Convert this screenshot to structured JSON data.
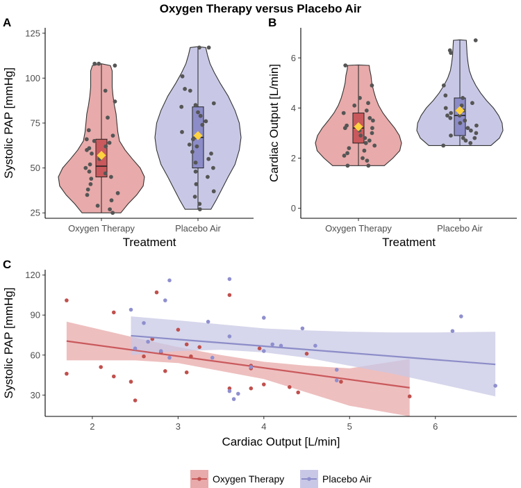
{
  "figure": {
    "title": "Oxygen Therapy versus Placebo Air",
    "colors": {
      "oxygen_fill": "#e8aaaa",
      "oxygen_box": "#c9595c",
      "oxygen_point": "#c0504d",
      "placebo_fill": "#c8c8e6",
      "placebo_box": "#8c8cc8",
      "placebo_point": "#8f8fcf",
      "jitter_point": "#555555",
      "mean_marker": "#ffd23f"
    },
    "legend": {
      "oxygen": "Oxygen Therapy",
      "placebo": "Placebo Air"
    }
  },
  "chart_data": [
    {
      "panel": "A",
      "type": "violin",
      "xlabel": "Treatment",
      "ylabel": "Systolic PAP [mmHg]",
      "ylim": [
        22,
        128
      ],
      "yticks": [
        25,
        50,
        75,
        100,
        125
      ],
      "groups": [
        {
          "name": "Oxygen Therapy",
          "min": 25,
          "q1": 45,
          "median": 51,
          "q3": 66,
          "max": 108,
          "mean": 57,
          "density": [
            [
              25,
              0.45
            ],
            [
              30,
              0.62
            ],
            [
              35,
              0.82
            ],
            [
              40,
              0.97
            ],
            [
              45,
              1.0
            ],
            [
              50,
              0.9
            ],
            [
              55,
              0.72
            ],
            [
              60,
              0.55
            ],
            [
              65,
              0.42
            ],
            [
              70,
              0.38
            ],
            [
              75,
              0.36
            ],
            [
              80,
              0.34
            ],
            [
              85,
              0.3
            ],
            [
              90,
              0.27
            ],
            [
              95,
              0.25
            ],
            [
              100,
              0.25
            ],
            [
              104,
              0.25
            ],
            [
              107,
              0.21
            ],
            [
              108,
              0.0
            ]
          ],
          "points": [
            108,
            108,
            107,
            93,
            87,
            78,
            71,
            68,
            66,
            65,
            64,
            62,
            61,
            60,
            58,
            56,
            55,
            52,
            50,
            48,
            47,
            45,
            44,
            41,
            38,
            36,
            35,
            32,
            29,
            27,
            25
          ]
        },
        {
          "name": "Placebo Air",
          "min": 27,
          "q1": 50,
          "median": 67,
          "q3": 84,
          "max": 117,
          "mean": 68,
          "density": [
            [
              27,
              0.3
            ],
            [
              32,
              0.42
            ],
            [
              38,
              0.55
            ],
            [
              45,
              0.7
            ],
            [
              52,
              0.86
            ],
            [
              60,
              0.96
            ],
            [
              67,
              1.0
            ],
            [
              75,
              0.96
            ],
            [
              82,
              0.86
            ],
            [
              90,
              0.7
            ],
            [
              97,
              0.52
            ],
            [
              103,
              0.38
            ],
            [
              108,
              0.28
            ],
            [
              113,
              0.22
            ],
            [
              117,
              0.18
            ],
            [
              117.5,
              0.0
            ]
          ],
          "points": [
            117,
            117,
            101,
            94,
            93,
            86,
            85,
            84,
            81,
            79,
            76,
            74,
            70,
            67,
            66,
            63,
            62,
            59,
            58,
            55,
            53,
            50,
            48,
            45,
            41,
            37,
            34,
            30,
            27
          ]
        }
      ]
    },
    {
      "panel": "B",
      "type": "violin",
      "xlabel": "Treatment",
      "ylabel": "Cardiac Output [L/min]",
      "ylim": [
        -0.4,
        7.2
      ],
      "yticks": [
        0,
        2,
        4,
        6
      ],
      "groups": [
        {
          "name": "Oxygen Therapy",
          "min": 1.7,
          "q1": 2.6,
          "median": 3.2,
          "q3": 3.8,
          "max": 5.7,
          "mean": 3.25,
          "density": [
            [
              1.7,
              0.6
            ],
            [
              2.0,
              0.8
            ],
            [
              2.3,
              0.96
            ],
            [
              2.6,
              1.0
            ],
            [
              2.9,
              0.95
            ],
            [
              3.2,
              0.84
            ],
            [
              3.5,
              0.7
            ],
            [
              3.8,
              0.57
            ],
            [
              4.1,
              0.47
            ],
            [
              4.4,
              0.4
            ],
            [
              4.7,
              0.35
            ],
            [
              5.0,
              0.31
            ],
            [
              5.3,
              0.29
            ],
            [
              5.55,
              0.26
            ],
            [
              5.7,
              0.25
            ],
            [
              5.72,
              0.0
            ]
          ],
          "points": [
            5.7,
            4.9,
            4.4,
            4.2,
            4.1,
            3.9,
            3.8,
            3.6,
            3.5,
            3.3,
            3.2,
            3.2,
            3.1,
            3.0,
            2.9,
            2.8,
            2.7,
            2.6,
            2.5,
            2.4,
            2.3,
            2.2,
            2.1,
            2.0,
            1.9,
            1.7,
            1.7
          ]
        },
        {
          "name": "Placebo Air",
          "min": 2.5,
          "q1": 2.9,
          "median": 3.7,
          "q3": 4.4,
          "max": 6.7,
          "mean": 3.9,
          "density": [
            [
              2.5,
              0.72
            ],
            [
              2.8,
              0.92
            ],
            [
              3.1,
              1.0
            ],
            [
              3.4,
              0.98
            ],
            [
              3.7,
              0.9
            ],
            [
              4.0,
              0.78
            ],
            [
              4.3,
              0.62
            ],
            [
              4.6,
              0.48
            ],
            [
              4.9,
              0.37
            ],
            [
              5.2,
              0.28
            ],
            [
              5.5,
              0.22
            ],
            [
              5.8,
              0.19
            ],
            [
              6.1,
              0.17
            ],
            [
              6.4,
              0.16
            ],
            [
              6.7,
              0.15
            ],
            [
              6.72,
              0.0
            ]
          ],
          "points": [
            6.7,
            6.3,
            6.2,
            4.9,
            4.5,
            4.4,
            4.2,
            4.1,
            4.0,
            3.9,
            3.8,
            3.7,
            3.7,
            3.6,
            3.5,
            3.4,
            3.3,
            3.2,
            3.1,
            3.0,
            2.9,
            2.8,
            2.8,
            2.7,
            2.6,
            2.5
          ]
        }
      ]
    },
    {
      "panel": "C",
      "type": "scatter",
      "xlabel": "Cardiac Output [L/min]",
      "ylabel": "Systolic PAP [mmHg]",
      "xlim": [
        1.45,
        6.95
      ],
      "ylim": [
        14,
        124
      ],
      "xticks": [
        2,
        3,
        4,
        5,
        6
      ],
      "yticks": [
        30,
        60,
        90,
        120
      ],
      "series": [
        {
          "name": "Oxygen Therapy",
          "fit": [
            [
              1.7,
              70.5
            ],
            [
              5.7,
              35.5
            ]
          ],
          "band_upper": [
            [
              1.7,
              85
            ],
            [
              2.5,
              73
            ],
            [
              3.0,
              66
            ],
            [
              3.5,
              60
            ],
            [
              4.0,
              55
            ],
            [
              4.5,
              52
            ],
            [
              5.0,
              50
            ],
            [
              5.7,
              57
            ]
          ],
          "band_lower": [
            [
              1.7,
              56
            ],
            [
              2.5,
              56
            ],
            [
              3.0,
              54
            ],
            [
              3.5,
              48
            ],
            [
              4.0,
              42
            ],
            [
              4.5,
              32
            ],
            [
              5.0,
              22
            ],
            [
              5.7,
              14
            ]
          ],
          "points": [
            [
              1.7,
              101
            ],
            [
              1.7,
              46
            ],
            [
              2.1,
              51
            ],
            [
              2.25,
              92
            ],
            [
              2.25,
              44
            ],
            [
              2.45,
              40
            ],
            [
              2.5,
              26
            ],
            [
              2.6,
              59
            ],
            [
              2.7,
              72
            ],
            [
              2.75,
              107
            ],
            [
              2.8,
              62
            ],
            [
              2.85,
              48
            ],
            [
              3.0,
              79
            ],
            [
              3.1,
              68
            ],
            [
              3.1,
              47
            ],
            [
              3.15,
              59
            ],
            [
              3.25,
              66
            ],
            [
              3.6,
              105
            ],
            [
              3.6,
              35
            ],
            [
              3.85,
              35
            ],
            [
              3.85,
              52
            ],
            [
              3.85,
              50
            ],
            [
              3.95,
              65
            ],
            [
              4.0,
              38
            ],
            [
              4.3,
              36
            ],
            [
              4.4,
              32
            ],
            [
              4.5,
              61
            ],
            [
              4.9,
              40
            ],
            [
              5.7,
              29
            ]
          ]
        },
        {
          "name": "Placebo Air",
          "fit": [
            [
              2.45,
              74.5
            ],
            [
              6.7,
              53
            ]
          ],
          "band_upper": [
            [
              2.45,
              89
            ],
            [
              3.0,
              86
            ],
            [
              3.5,
              83
            ],
            [
              4.0,
              80
            ],
            [
              4.5,
              78.5
            ],
            [
              5.0,
              77.5
            ],
            [
              5.5,
              77
            ],
            [
              6.0,
              77
            ],
            [
              6.7,
              77.5
            ]
          ],
          "band_lower": [
            [
              2.45,
              60
            ],
            [
              3.0,
              63
            ],
            [
              3.5,
              64
            ],
            [
              4.0,
              62
            ],
            [
              4.5,
              58
            ],
            [
              5.0,
              52
            ],
            [
              5.5,
              46
            ],
            [
              6.0,
              39
            ],
            [
              6.7,
              29
            ]
          ],
          "points": [
            [
              2.45,
              94
            ],
            [
              2.5,
              65
            ],
            [
              2.6,
              84
            ],
            [
              2.65,
              70
            ],
            [
              2.8,
              63
            ],
            [
              2.85,
              101
            ],
            [
              2.9,
              116
            ],
            [
              2.9,
              58
            ],
            [
              3.35,
              85
            ],
            [
              3.4,
              58
            ],
            [
              3.6,
              117
            ],
            [
              3.6,
              74
            ],
            [
              3.6,
              33
            ],
            [
              3.65,
              27
            ],
            [
              3.7,
              31
            ],
            [
              3.85,
              51
            ],
            [
              4.0,
              88
            ],
            [
              4.0,
              63
            ],
            [
              4.1,
              68
            ],
            [
              4.2,
              67
            ],
            [
              4.45,
              80
            ],
            [
              4.6,
              67
            ],
            [
              4.85,
              49
            ],
            [
              4.85,
              41
            ],
            [
              6.2,
              78
            ],
            [
              6.3,
              89
            ],
            [
              6.7,
              37
            ]
          ]
        }
      ]
    }
  ]
}
